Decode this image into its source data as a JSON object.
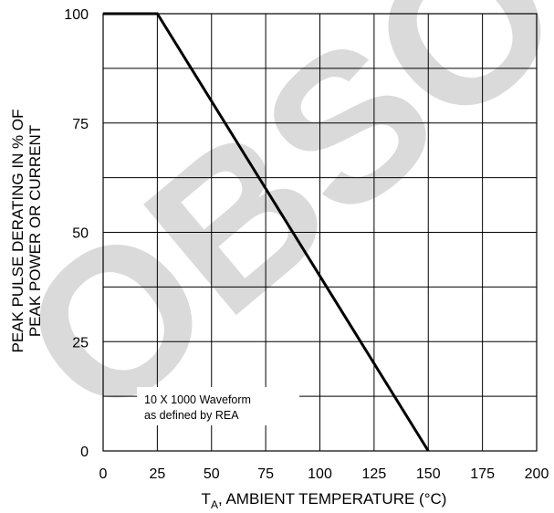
{
  "chart_data": {
    "type": "line",
    "x": [
      0,
      25,
      150
    ],
    "series": [
      {
        "values": [
          100,
          100,
          0
        ]
      }
    ],
    "xlabel": {
      "main": "T",
      "sub": "A",
      "rest": ", AMBIENT TEMPERATURE (°C)"
    },
    "ylabel": [
      "PEAK PULSE DERATING IN % OF",
      "PEAK POWER OR CURRENT"
    ],
    "xticks": [
      "0",
      "25",
      "50",
      "75",
      "100",
      "125",
      "150",
      "175",
      "200"
    ],
    "yticks": [
      "0",
      "25",
      "50",
      "75",
      "100"
    ],
    "xlim": [
      0,
      200
    ],
    "ylim": [
      0,
      100
    ],
    "grid": true,
    "annotation": [
      "10 X 1000 Waveform",
      "as defined by REA"
    ],
    "watermark": "OBSOLETE"
  }
}
